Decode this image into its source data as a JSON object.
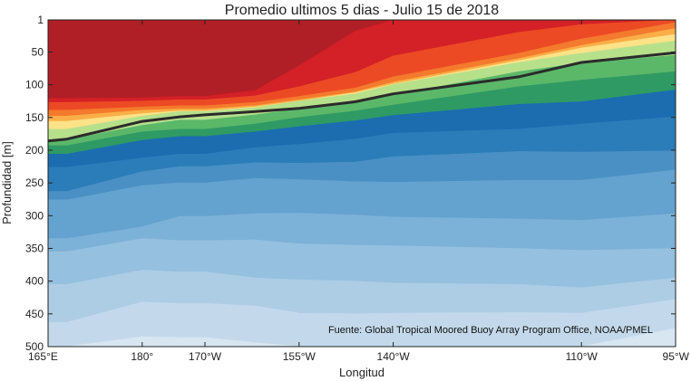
{
  "chart_data": {
    "type": "heatmap",
    "subtype": "filled-contour depth section",
    "title": "Promedio ultimos 5 dias - Julio 15 de 2018",
    "xlabel": "Longitud",
    "ylabel": "Profundidad [m]",
    "source_note": "Fuente: Global Tropical Moored Buoy Array Program Office, NOAA/PMEL",
    "x_tick_labels": [
      "165°E",
      "180°",
      "170°W",
      "155°W",
      "140°W",
      "110°W",
      "95°W"
    ],
    "x_tick_longitudes": [
      165,
      180,
      190,
      205,
      220,
      250,
      265
    ],
    "y_tick_labels": [
      "1",
      "50",
      "100",
      "150",
      "200",
      "250",
      "300",
      "350",
      "400",
      "450",
      "500"
    ],
    "y_tick_values": [
      1,
      50,
      100,
      150,
      200,
      250,
      300,
      350,
      400,
      450,
      500
    ],
    "xlim": [
      165,
      265
    ],
    "ylim": [
      500,
      1
    ],
    "y_reversed": true,
    "colors": {
      "band_top_to_bottom": [
        "#b11f26",
        "#d42027",
        "#ec4a24",
        "#f47a2d",
        "#fbae47",
        "#fee287",
        "#b7e08b",
        "#5bb869",
        "#2f9a64",
        "#1b6db0",
        "#2b7db9",
        "#4a90c4",
        "#64a2cf",
        "#7cb1d8",
        "#95c0df",
        "#adcde5",
        "#c3d9eb",
        "#d7e6f1"
      ],
      "thermocline_line": "#2b2b2b"
    },
    "contour_depths": {
      "longitudes": [
        165,
        168,
        180,
        186,
        190,
        198,
        205,
        214,
        220,
        240,
        250,
        265
      ],
      "levels": [
        [
          121,
          121,
          120,
          118,
          118,
          109,
          71,
          18,
          1,
          1,
          1,
          1
        ],
        [
          127,
          127,
          125,
          123,
          123,
          117,
          103,
          81,
          56,
          20,
          8,
          1
        ],
        [
          139,
          139,
          134,
          132,
          132,
          127,
          118,
          105,
          88,
          52,
          30,
          5
        ],
        [
          148,
          148,
          139,
          137,
          137,
          132,
          123,
          111,
          96,
          60,
          40,
          14
        ],
        [
          156,
          156,
          144,
          140,
          140,
          134,
          125,
          112,
          99,
          63,
          44,
          23
        ],
        [
          168,
          168,
          148,
          141,
          141,
          135,
          125,
          114,
          100,
          66,
          52,
          33
        ],
        [
          184,
          184,
          162,
          154,
          154,
          146,
          137,
          127,
          116,
          80,
          67,
          55
        ],
        [
          193,
          193,
          172,
          168,
          168,
          160,
          150,
          140,
          131,
          103,
          93,
          80
        ],
        [
          206,
          206,
          185,
          179,
          179,
          172,
          164,
          155,
          147,
          130,
          126,
          108
        ],
        [
          226,
          226,
          212,
          206,
          206,
          196,
          191,
          183,
          174,
          168,
          160,
          149
        ],
        [
          263,
          263,
          233,
          225,
          225,
          219,
          220,
          218,
          210,
          202,
          203,
          201
        ],
        [
          276,
          276,
          254,
          250,
          250,
          243,
          245,
          248,
          249,
          246,
          246,
          230
        ],
        [
          335,
          335,
          317,
          301,
          301,
          297,
          296,
          299,
          302,
          305,
          307,
          297
        ],
        [
          355,
          355,
          335,
          338,
          338,
          337,
          343,
          345,
          346,
          350,
          353,
          350
        ],
        [
          405,
          405,
          383,
          386,
          386,
          395,
          398,
          400,
          403,
          405,
          410,
          395
        ],
        [
          463,
          463,
          432,
          434,
          434,
          438,
          449,
          450,
          449,
          448,
          449,
          428
        ],
        [
          500,
          500,
          485,
          486,
          486,
          494,
          500,
          500,
          500,
          500,
          500,
          472
        ]
      ]
    },
    "thermocline": {
      "longitudes": [
        165,
        168,
        180,
        186,
        190,
        198,
        205,
        214,
        220,
        240,
        250,
        265
      ],
      "depths": [
        186,
        183,
        156,
        149,
        146,
        141,
        136,
        126,
        114,
        88,
        66,
        51
      ]
    }
  }
}
